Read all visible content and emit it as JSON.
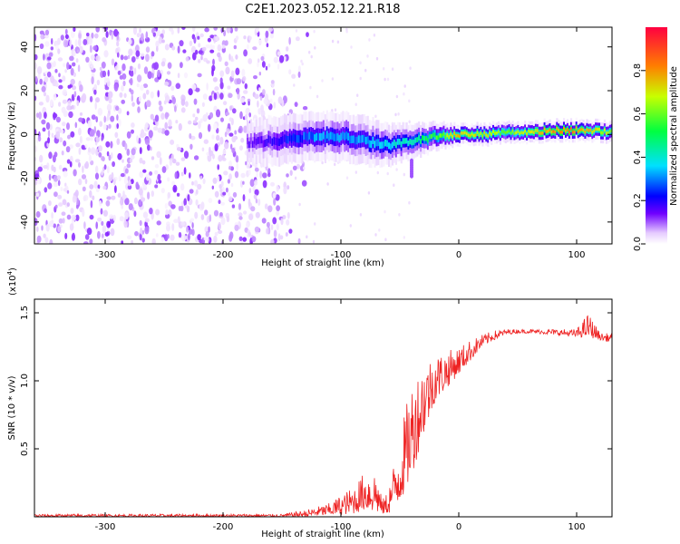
{
  "title": "C2E1.2023.052.12.21.R18",
  "chart_data": [
    {
      "type": "heatmap",
      "xlabel": "Height of straight line (km)",
      "ylabel": "Frequency (Hz)",
      "xlim": [
        -360,
        130
      ],
      "ylim": [
        -50,
        49
      ],
      "xticks": [
        -300,
        -200,
        -100,
        0,
        100
      ],
      "xtick_labels": [
        "-300",
        "-200",
        "-100",
        "0",
        "100"
      ],
      "yticks": [
        -40,
        -20,
        0,
        20,
        40
      ],
      "ytick_labels": [
        "-40",
        "-20",
        "0",
        "20",
        "40"
      ],
      "colorbar": {
        "label": "Normalized spectral amplitude",
        "range": [
          0.0,
          1.0
        ],
        "ticks": [
          0.0,
          0.2,
          0.4,
          0.6,
          0.8
        ],
        "tick_labels": [
          "0.0",
          "0.2",
          "0.4",
          "0.6",
          "0.8"
        ],
        "colormap": [
          "#ffffff",
          "#e6ccff",
          "#7000ff",
          "#0000ff",
          "#00e0ff",
          "#00ff40",
          "#c8ff00",
          "#ff7f00",
          "#ff0040"
        ]
      },
      "features": {
        "noise_region_x": [
          -360,
          -150
        ],
        "noise_amplitude": 0.2,
        "signal_trace": {
          "x": [
            -180,
            -160,
            -140,
            -120,
            -100,
            -80,
            -60,
            -40,
            -20,
            0,
            20,
            40,
            60,
            80,
            100,
            130
          ],
          "freq": [
            -4,
            -3,
            -2,
            -1,
            -1,
            -3,
            -5,
            -3,
            -1,
            0,
            0,
            1,
            1,
            2,
            2,
            1
          ],
          "amplitude": [
            0.25,
            0.3,
            0.4,
            0.45,
            0.45,
            0.45,
            0.5,
            0.55,
            0.65,
            0.8,
            0.75,
            0.7,
            0.75,
            0.85,
            0.85,
            0.7
          ],
          "halfwidth": [
            6,
            7,
            7,
            7,
            7,
            7,
            6,
            5,
            4,
            3,
            3,
            3,
            3,
            3,
            3,
            3
          ]
        }
      }
    },
    {
      "type": "line",
      "xlabel": "Height of straight line (km)",
      "ylabel": "SNR (10 * v/v)",
      "y_multiplier": "(x10",
      "y_multiplier_exp": "4",
      "y_multiplier_close": ")",
      "xlim": [
        -360,
        130
      ],
      "ylim": [
        0.0,
        1.6
      ],
      "xticks": [
        -300,
        -200,
        -100,
        0,
        100
      ],
      "xtick_labels": [
        "-300",
        "-200",
        "-100",
        "0",
        "100"
      ],
      "yticks": [
        0.5,
        1.0,
        1.5
      ],
      "ytick_labels": [
        "0.5",
        "1.0",
        "1.5"
      ],
      "series": [
        {
          "color": "#ee2222",
          "envelope": {
            "x": [
              -360,
              -150,
              -130,
              -110,
              -90,
              -80,
              -70,
              -65,
              -60,
              -50,
              -40,
              -30,
              -20,
              -10,
              0,
              10,
              20,
              30,
              40,
              50,
              60,
              80,
              100,
              110,
              120,
              130
            ],
            "lower": [
              0.0,
              0.0,
              0.0,
              0.01,
              0.02,
              0.05,
              0.03,
              0.02,
              0.02,
              0.1,
              0.3,
              0.6,
              0.85,
              0.95,
              1.05,
              1.15,
              1.25,
              1.3,
              1.34,
              1.35,
              1.35,
              1.34,
              1.32,
              1.32,
              1.3,
              1.28
            ],
            "upper": [
              0.02,
              0.02,
              0.05,
              0.1,
              0.22,
              0.33,
              0.35,
              0.12,
              0.2,
              0.6,
              1.0,
              1.15,
              1.2,
              1.22,
              1.25,
              1.3,
              1.34,
              1.37,
              1.38,
              1.38,
              1.38,
              1.38,
              1.38,
              1.5,
              1.35,
              1.35
            ]
          }
        }
      ]
    },
    {
      "type": "colorbar",
      "label": "Normalized spectral amplitude"
    }
  ]
}
